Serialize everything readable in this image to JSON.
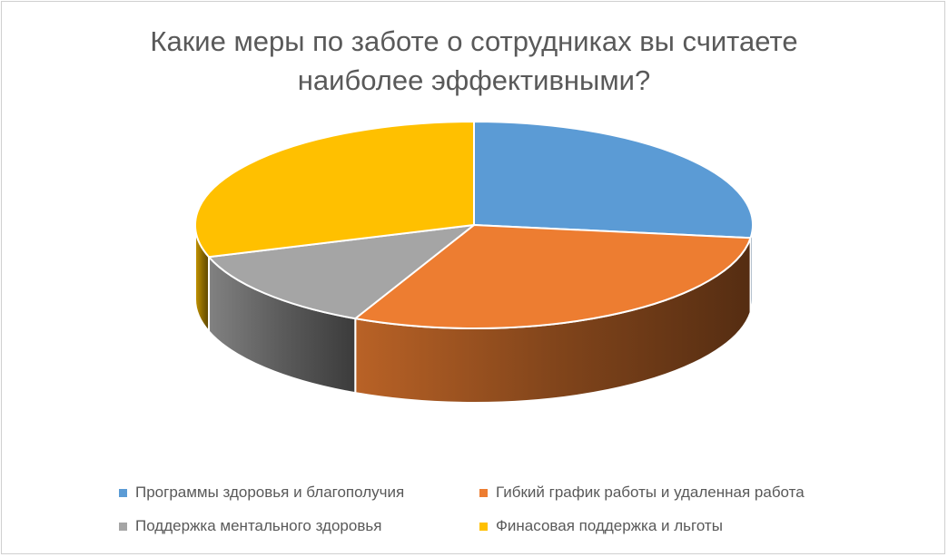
{
  "chart_data": {
    "type": "pie",
    "style": "3d",
    "title_lines": [
      "Какие меры по заботе о сотрудниках вы считаете",
      "наиболее эффективными?"
    ],
    "categories": [
      "Программы здоровья и благополучия",
      "Гибкий график работы и удаленная работа",
      "Поддержка ментального здоровья",
      "Финасовая поддержка и льготы"
    ],
    "values": [
      27,
      30,
      13,
      30
    ],
    "colors": [
      "#5B9BD5",
      "#ED7D31",
      "#A5A5A5",
      "#FFC000"
    ],
    "legend_position": "bottom"
  }
}
